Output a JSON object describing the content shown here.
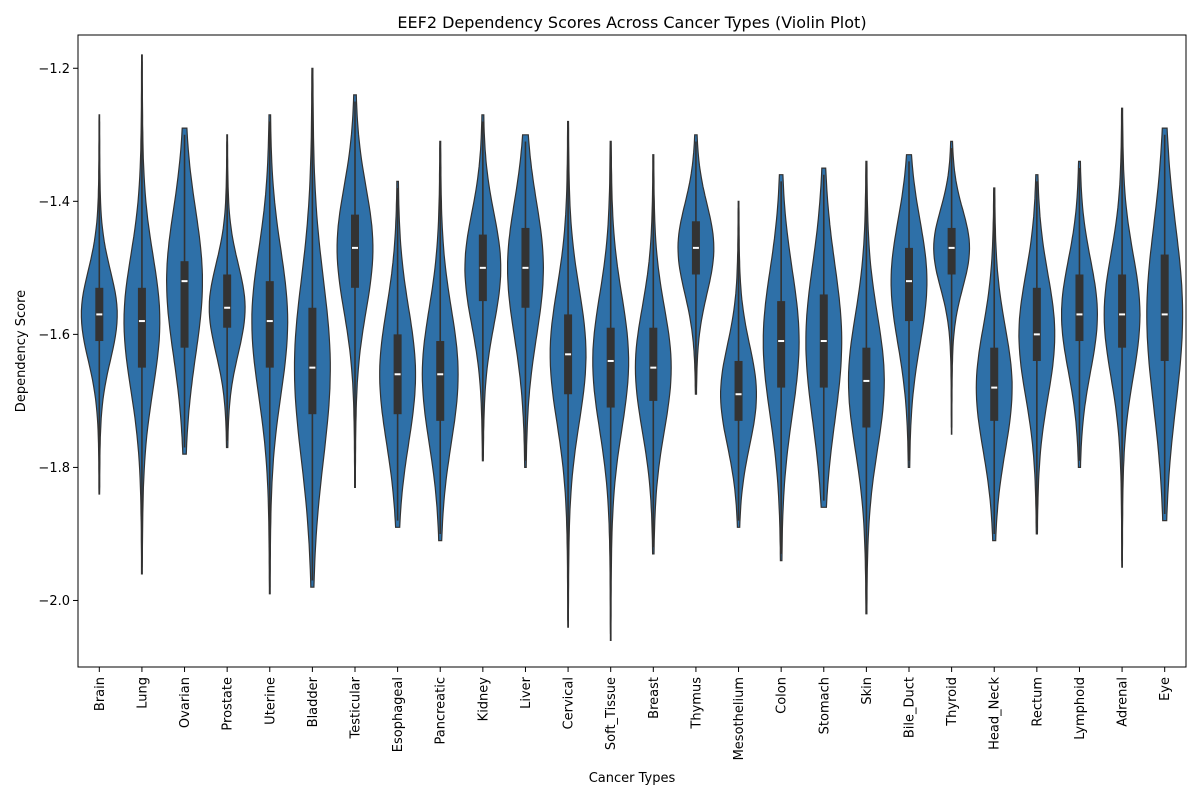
{
  "chart_data": {
    "type": "violin",
    "title": "EEF2 Dependency Scores Across Cancer Types (Violin Plot)",
    "xlabel": "Cancer Types",
    "ylabel": "Dependency Score",
    "ylim": [
      -2.1,
      -1.15
    ],
    "yticks": [
      -2.0,
      -1.8,
      -1.6,
      -1.4,
      -1.2
    ],
    "ytick_labels": [
      "−2.0",
      "−1.8",
      "−1.6",
      "−1.4",
      "−1.2"
    ],
    "grid": false,
    "color": "#2e70a8",
    "edge_color": "#333333",
    "categories": [
      "Brain",
      "Lung",
      "Ovarian",
      "Prostate",
      "Uterine",
      "Bladder",
      "Testicular",
      "Esophageal",
      "Pancreatic",
      "Kidney",
      "Liver",
      "Cervical",
      "Soft_Tissue",
      "Breast",
      "Thymus",
      "Mesothelium",
      "Colon",
      "Stomach",
      "Skin",
      "Bile_Duct",
      "Thyroid",
      "Head_Neck",
      "Rectum",
      "Lymphoid",
      "Adrenal",
      "Eye"
    ],
    "min": [
      -1.83,
      -1.95,
      -1.77,
      -1.76,
      -1.98,
      -1.97,
      -1.82,
      -1.88,
      -1.9,
      -1.78,
      -1.79,
      -2.03,
      -2.05,
      -1.92,
      -1.68,
      -1.88,
      -1.93,
      -1.85,
      -2.01,
      -1.79,
      -1.74,
      -1.9,
      -1.89,
      -1.79,
      -1.94,
      -1.87
    ],
    "q1": [
      -1.61,
      -1.65,
      -1.62,
      -1.59,
      -1.65,
      -1.72,
      -1.53,
      -1.72,
      -1.73,
      -1.55,
      -1.56,
      -1.69,
      -1.71,
      -1.7,
      -1.51,
      -1.73,
      -1.68,
      -1.68,
      -1.74,
      -1.58,
      -1.51,
      -1.73,
      -1.64,
      -1.61,
      -1.62,
      -1.64
    ],
    "median": [
      -1.57,
      -1.58,
      -1.52,
      -1.56,
      -1.58,
      -1.65,
      -1.47,
      -1.66,
      -1.66,
      -1.5,
      -1.5,
      -1.63,
      -1.64,
      -1.65,
      -1.47,
      -1.69,
      -1.61,
      -1.61,
      -1.67,
      -1.52,
      -1.47,
      -1.68,
      -1.6,
      -1.57,
      -1.57,
      -1.57
    ],
    "q3": [
      -1.53,
      -1.53,
      -1.49,
      -1.51,
      -1.52,
      -1.56,
      -1.42,
      -1.6,
      -1.61,
      -1.45,
      -1.44,
      -1.57,
      -1.59,
      -1.59,
      -1.43,
      -1.64,
      -1.55,
      -1.54,
      -1.62,
      -1.47,
      -1.44,
      -1.62,
      -1.53,
      -1.51,
      -1.51,
      -1.48
    ],
    "max": [
      -1.28,
      -1.19,
      -1.3,
      -1.31,
      -1.28,
      -1.21,
      -1.25,
      -1.38,
      -1.32,
      -1.28,
      -1.31,
      -1.29,
      -1.32,
      -1.34,
      -1.31,
      -1.41,
      -1.37,
      -1.36,
      -1.35,
      -1.34,
      -1.32,
      -1.39,
      -1.37,
      -1.35,
      -1.27,
      -1.3
    ]
  }
}
